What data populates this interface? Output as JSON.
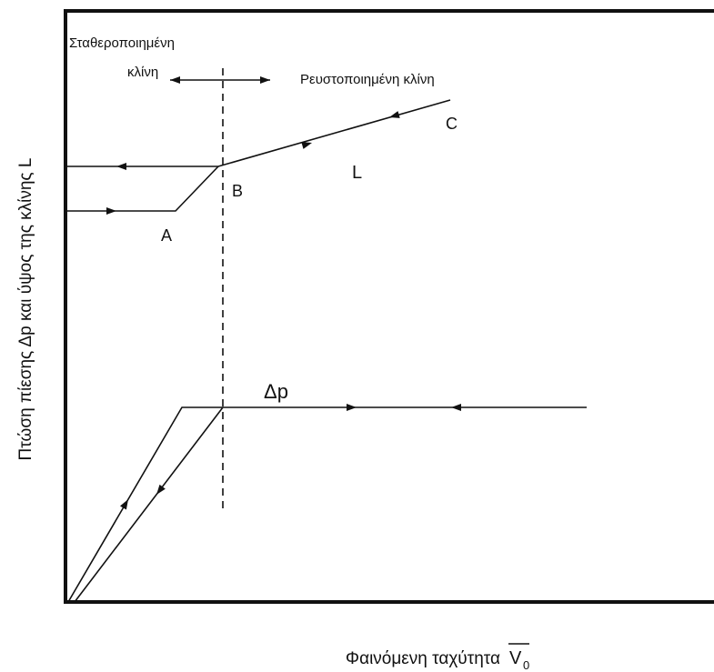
{
  "axis_labels": {
    "y": "Πτώση πίεσης Δp και ύψος της κλίνης L",
    "x": "Φαινόμενη ταχύτητα",
    "x_symbol": "V",
    "x_subscript": "0"
  },
  "regions": {
    "fixed_line1": "Σταθεροποιημένη",
    "fixed_line2": "κλίνη",
    "fluidized": "Ρευστοποιημένη κλίνη"
  },
  "points": {
    "a": "A",
    "b": "B",
    "c": "C"
  },
  "curves": {
    "height": "L",
    "pressure": "Δp"
  }
}
